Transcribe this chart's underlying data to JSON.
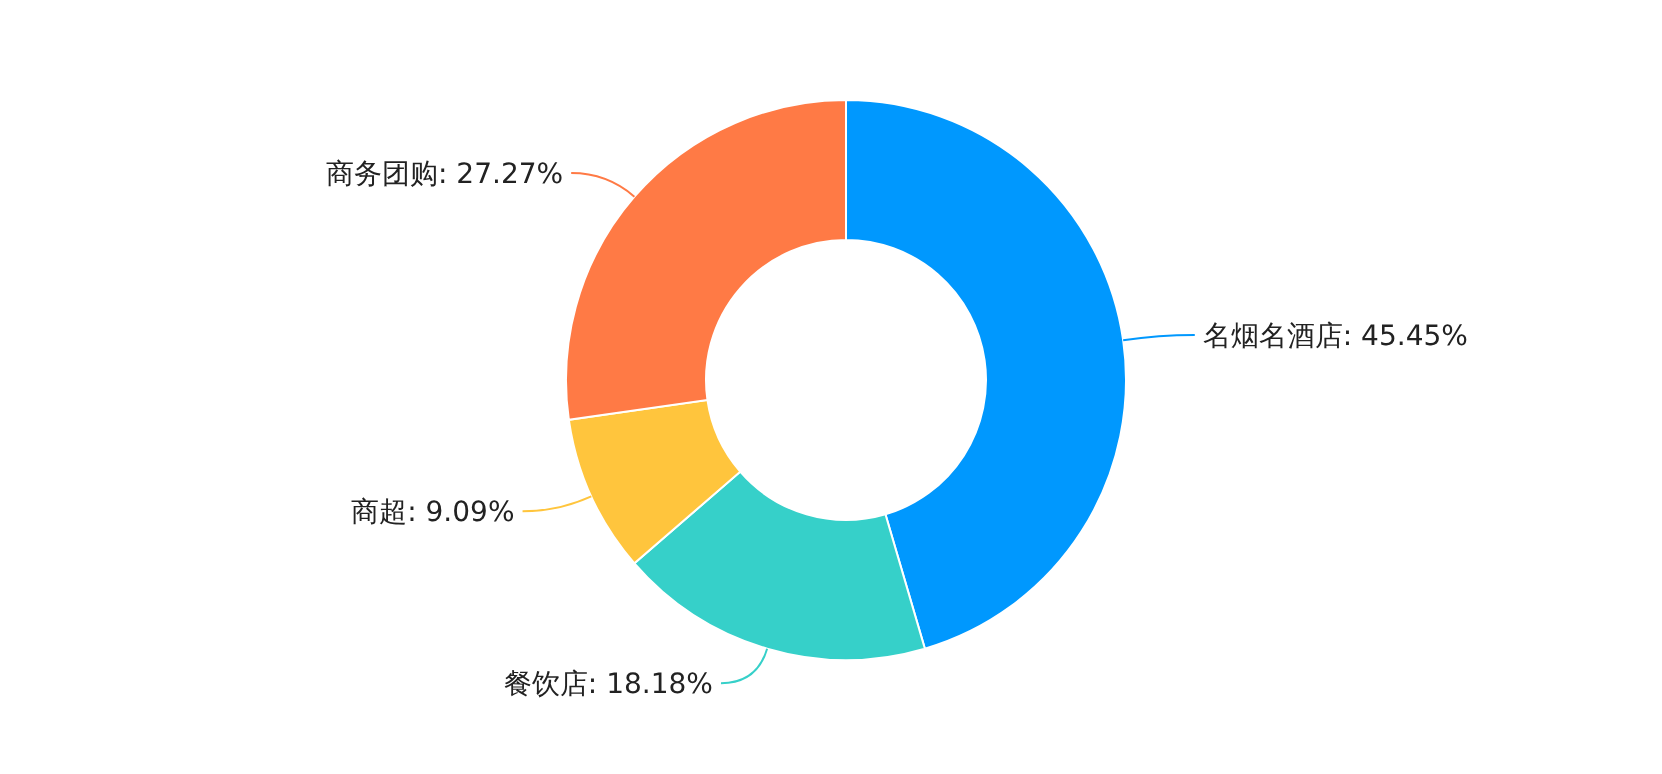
{
  "chart_data": {
    "type": "donut",
    "categories": [
      "名烟名酒店",
      "餐饮店",
      "商超",
      "商务团购"
    ],
    "values": [
      45.45,
      18.18,
      9.09,
      27.27
    ],
    "value_labels": [
      ": 45.45%",
      ": 18.18%",
      ": 9.09%",
      ": 27.27%"
    ],
    "colors": [
      "#0098fe",
      "#36d0c9",
      "#ffc53d",
      "#ff7a45"
    ]
  }
}
